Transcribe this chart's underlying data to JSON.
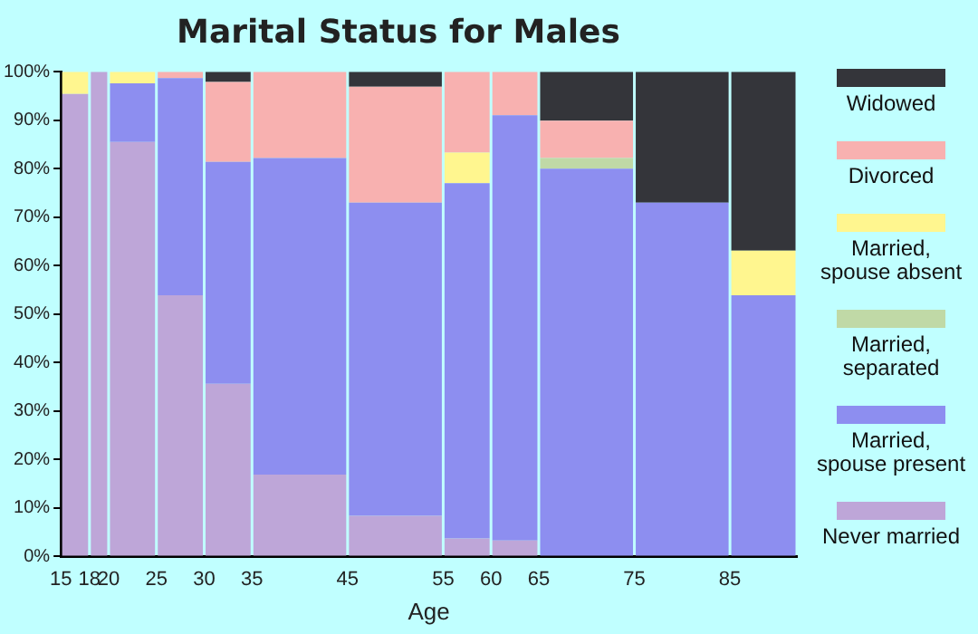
{
  "chart_data": {
    "type": "bar",
    "stacked": true,
    "title": "Marital Status for Males",
    "xlabel": "Age",
    "x": [
      16.5,
      19,
      22.5,
      27.5,
      32.5,
      40,
      50,
      57.5,
      62.5,
      70,
      80,
      88.5
    ],
    "xlim": [
      15,
      92
    ],
    "xticks": [
      15,
      18,
      20,
      25,
      30,
      35,
      45,
      55,
      60,
      65,
      75,
      85
    ],
    "ylim": [
      0,
      100
    ],
    "yticks": [
      {
        "value": 0,
        "label": "0%"
      },
      {
        "value": 10,
        "label": "10%"
      },
      {
        "value": 20,
        "label": "20%"
      },
      {
        "value": 30,
        "label": "30%"
      },
      {
        "value": 40,
        "label": "40%"
      },
      {
        "value": 50,
        "label": "50%"
      },
      {
        "value": 60,
        "label": "60%"
      },
      {
        "value": 70,
        "label": "70%"
      },
      {
        "value": 80,
        "label": "80%"
      },
      {
        "value": 90,
        "label": "90%"
      },
      {
        "value": 100,
        "label": "100%"
      }
    ],
    "grid": false,
    "legend": "right",
    "series": [
      {
        "name": "Never married",
        "color": "#bea6d8",
        "values": [
          95.4,
          100,
          85.5,
          53.9,
          35.6,
          16.9,
          8.4,
          3.7,
          3.3,
          0,
          0,
          0
        ]
      },
      {
        "name": "Married, spouse present",
        "color": "#8d8ef0",
        "values": [
          0,
          0,
          12.1,
          44.8,
          45.8,
          65.3,
          64.6,
          73.3,
          87.7,
          80,
          73,
          53.9
        ]
      },
      {
        "name": "Married, separated",
        "color": "#c0d9a6",
        "values": [
          0,
          0,
          0,
          0,
          0,
          0,
          0,
          0,
          0,
          2.2,
          0,
          0
        ]
      },
      {
        "name": "Married, spouse absent",
        "color": "#fff68f",
        "values": [
          4.6,
          0,
          2.4,
          0,
          0,
          0,
          0,
          6.3,
          0,
          0,
          0,
          9.2
        ]
      },
      {
        "name": "Divorced",
        "color": "#f8b1b0",
        "values": [
          0,
          0,
          0,
          1.3,
          16.5,
          17.8,
          23.9,
          16.7,
          9,
          7.7,
          0,
          0
        ]
      },
      {
        "name": "Widowed",
        "color": "#34353a",
        "values": [
          0,
          0,
          0,
          0,
          2.1,
          0,
          3.1,
          0,
          0,
          10.1,
          27,
          36.9
        ]
      }
    ]
  }
}
